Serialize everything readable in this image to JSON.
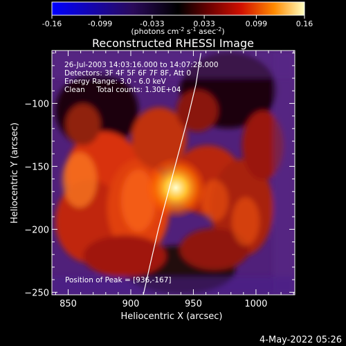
{
  "colorbar": {
    "tick_labels": [
      "-0.16",
      "-0.099",
      "-0.033",
      "0.033",
      "0.099",
      "0.16"
    ],
    "tick_values": [
      -0.16,
      -0.099,
      -0.033,
      0.033,
      0.099,
      0.16
    ],
    "range": [
      -0.16,
      0.16
    ],
    "units_prefix": "(photons cm",
    "units_exp1": "-2",
    "units_mid": " s",
    "units_exp2": "-1",
    "units_end": " asec",
    "units_exp3": "-2",
    "units_close": ")"
  },
  "chart_data": {
    "type": "heatmap",
    "title": "Reconstructed RHESSI Image",
    "xlabel": "Heliocentric X (arcsec)",
    "ylabel": "Heliocentric Y (arcsec)",
    "xlim": [
      837,
      1031
    ],
    "ylim": [
      -252,
      -58
    ],
    "x_ticks": [
      850,
      900,
      950,
      1000
    ],
    "y_ticks": [
      -100,
      -150,
      -200,
      -250
    ],
    "x_tick_labels": [
      "850",
      "900",
      "950",
      "1000"
    ],
    "y_tick_labels": [
      "−100",
      "−150",
      "−200",
      "−250"
    ],
    "peak": [
      936,
      -167
    ],
    "limb": [
      [
        910,
        -252
      ],
      [
        915,
        -230
      ],
      [
        922,
        -200
      ],
      [
        930,
        -170
      ],
      [
        938,
        -140
      ],
      [
        946,
        -110
      ],
      [
        952,
        -85
      ],
      [
        956,
        -60
      ]
    ],
    "annotations": [
      "26-Jul-2003 14:03:16.000 to 14:07:28.000",
      "Detectors: 3F 4F 5F 6F 7F 8F, Att 0",
      "Energy Range: 3.0 - 6.0 keV",
      "Clean     Total counts: 1.30E+04"
    ],
    "peak_label": "Position of Peak = [936,-167]"
  },
  "footer_date": "4-May-2022 05:26"
}
